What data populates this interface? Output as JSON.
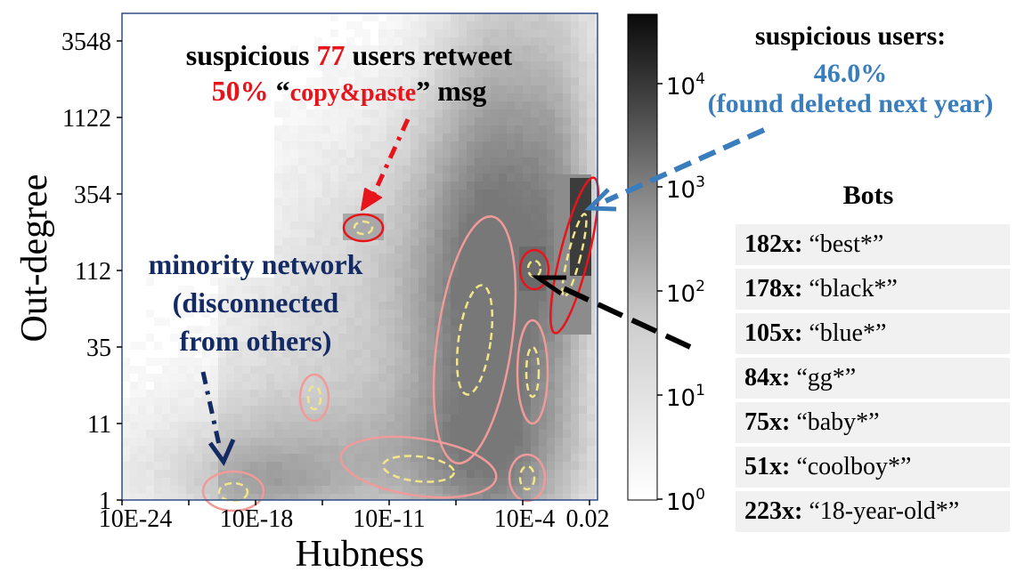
{
  "chart_data": {
    "type": "heatmap",
    "xlabel": "Hubness",
    "ylabel": "Out-degree",
    "x_ticks": [
      "10E-24",
      "10E-18",
      "10E-11",
      "10E-4",
      "0.02"
    ],
    "y_ticks": [
      "1",
      "11",
      "35",
      "112",
      "354",
      "1122",
      "3548"
    ],
    "colorbar": {
      "scale": "log",
      "ticks": [
        {
          "base": "10",
          "exp": "0"
        },
        {
          "base": "10",
          "exp": "1"
        },
        {
          "base": "10",
          "exp": "2"
        },
        {
          "base": "10",
          "exp": "3"
        },
        {
          "base": "10",
          "exp": "4"
        }
      ],
      "colormap": "Greys"
    }
  },
  "annotations": {
    "retweet": {
      "line1_pre": "suspicious ",
      "line1_num": "77",
      "line1_post": " users retweet",
      "line2_pct": "50%",
      "line2_q_open": " “",
      "line2_phrase": "copy&paste",
      "line2_q_close": "” ",
      "line2_post": "msg"
    },
    "minority": {
      "line1": "minority network",
      "line2": "(disconnected",
      "line3": "from others)"
    },
    "suspicious_users": {
      "title": "suspicious users:",
      "value": "46.0%",
      "note": "(found deleted next year)"
    },
    "bots": {
      "title": "Bots",
      "items": [
        {
          "count": "182x:",
          "pattern": " “best*”"
        },
        {
          "count": "178x:",
          "pattern": " “black*”"
        },
        {
          "count": "105x:",
          "pattern": " “blue*”"
        },
        {
          "count": "84x:",
          "pattern": " “gg*”"
        },
        {
          "count": "75x:",
          "pattern": " “baby*”"
        },
        {
          "count": "51x:",
          "pattern": " “coolboy*”"
        },
        {
          "count": "223x:",
          "pattern": " “18-year-old*”"
        }
      ]
    }
  },
  "colors": {
    "highlight_red": "#e8141c",
    "cluster_pink": "#f09a9a",
    "cluster_yellow_dashed": "#f2e68a",
    "blue_annotation": "#3a7dbd",
    "navy_annotation": "#142a63"
  }
}
